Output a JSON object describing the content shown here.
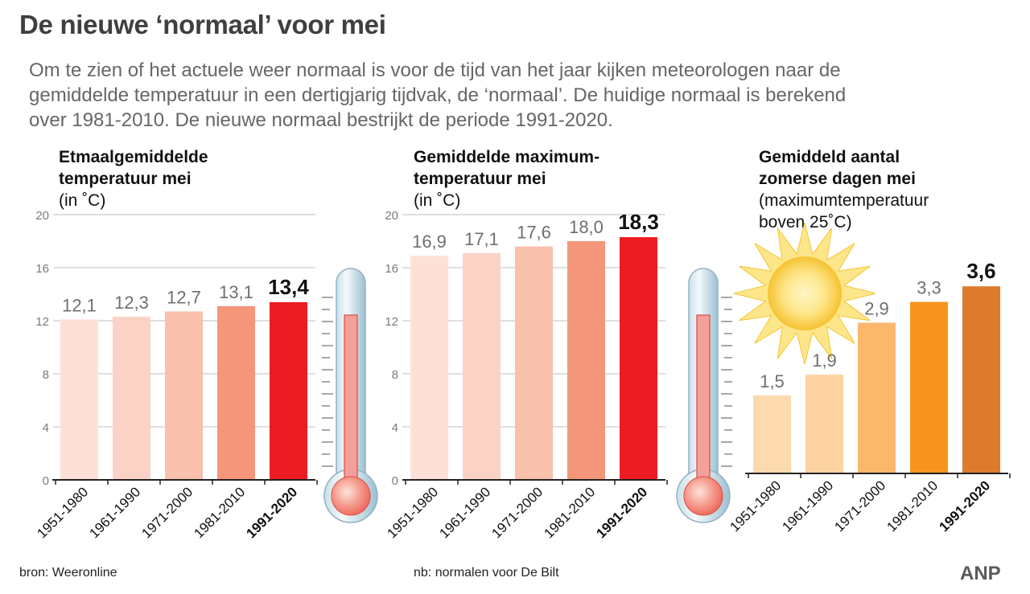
{
  "header": {
    "title": "De nieuwe ‘normaal’ voor mei",
    "intro": "Om te zien of het actuele weer normaal is voor de tijd van het jaar kijken meteorologen naar de\ngemiddelde temperatuur in een dertigjarig tijdvak, de ‘normaal’. De huidige normaal is berekend\nover 1981-2010. De nieuwe normaal bestrijkt de periode 1991-2020."
  },
  "panels": [
    {
      "title_bold": "Etmaalgemiddelde\ntemperatuur mei",
      "title_sub": "(in ˚C)"
    },
    {
      "title_bold": "Gemiddelde maximum-\ntemperatuur mei",
      "title_sub": "(in ˚C)"
    },
    {
      "title_bold": "Gemiddeld aantal\nzomerse dagen mei",
      "title_sub": "(maximumtemperatuur\nboven 25˚C)"
    }
  ],
  "chart_data": [
    {
      "type": "bar",
      "title": "Etmaalgemiddelde temperatuur mei",
      "ylabel": "(in ˚C)",
      "categories": [
        "1951-1980",
        "1961-1990",
        "1971-2000",
        "1981-2010",
        "1991-2020"
      ],
      "values": [
        12.1,
        12.3,
        12.7,
        13.1,
        13.4
      ],
      "value_labels": [
        "12,1",
        "12,3",
        "12,7",
        "13,1",
        "13,4"
      ],
      "ylim": [
        0,
        20
      ],
      "yticks": [
        "0",
        "4",
        "8",
        "12",
        "16",
        "20"
      ],
      "grid": true,
      "colors": [
        "#fde1d8",
        "#fbd3c6",
        "#f9c0ab",
        "#f3967a",
        "#ed1c24"
      ]
    },
    {
      "type": "bar",
      "title": "Gemiddelde maximum-temperatuur mei",
      "ylabel": "(in ˚C)",
      "categories": [
        "1951-1980",
        "1961-1990",
        "1971-2000",
        "1981-2010",
        "1991-2020"
      ],
      "values": [
        16.9,
        17.1,
        17.6,
        18.0,
        18.3
      ],
      "value_labels": [
        "16,9",
        "17,1",
        "17,6",
        "18,0",
        "18,3"
      ],
      "ylim": [
        0,
        20
      ],
      "yticks": [
        "0",
        "4",
        "8",
        "12",
        "16",
        "20"
      ],
      "grid": true,
      "colors": [
        "#fde1d8",
        "#fbd3c6",
        "#f9c0ab",
        "#f3967a",
        "#ed1c24"
      ]
    },
    {
      "type": "bar",
      "title": "Gemiddeld aantal zomerse dagen mei",
      "ylabel": "(maximumtemperatuur boven 25˚C)",
      "categories": [
        "1951-1980",
        "1961-1990",
        "1971-2000",
        "1981-2010",
        "1991-2020"
      ],
      "values": [
        1.5,
        1.9,
        2.9,
        3.3,
        3.6
      ],
      "value_labels": [
        "1,5",
        "1,9",
        "2,9",
        "3,3",
        "3,6"
      ],
      "ylim": [
        0,
        4.5
      ],
      "grid": false,
      "colors": [
        "#fcd9ae",
        "#fcd3a1",
        "#fbb86d",
        "#f7941d",
        "#dd7b2c"
      ]
    }
  ],
  "footer": {
    "source": "bron:  Weeronline",
    "note": "nb: normalen voor De Bilt",
    "logo": "ANP"
  },
  "icons": [
    "thermometer-icon",
    "thermometer-icon",
    "sun-icon"
  ]
}
